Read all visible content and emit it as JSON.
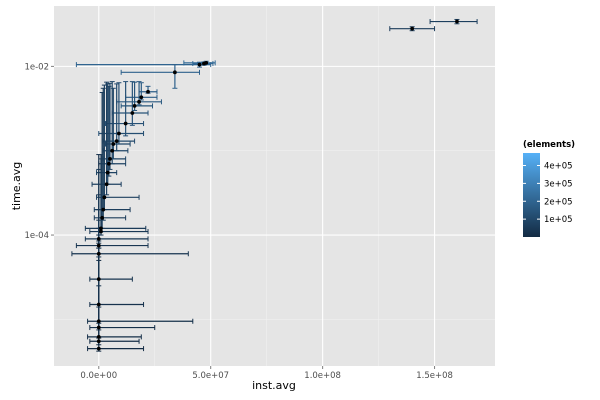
{
  "chart_data": {
    "type": "scatter",
    "title": "",
    "xlabel": "inst.avg",
    "ylabel": "time.avg",
    "x_scale": "linear",
    "y_scale": "log10",
    "xlim": [
      -20000000,
      177000000
    ],
    "ylim": [
      2.8e-06,
      0.052
    ],
    "x_ticks": [
      {
        "value": 0,
        "label": "0.0e+00"
      },
      {
        "value": 50000000,
        "label": "5.0e+07"
      },
      {
        "value": 100000000,
        "label": "1.0e+08"
      },
      {
        "value": 150000000,
        "label": "1.5e+08"
      }
    ],
    "y_ticks": [
      {
        "value": 0.0001,
        "label": "1e-04"
      },
      {
        "value": 0.01,
        "label": "1e-02"
      }
    ],
    "grid": true,
    "legend": {
      "title": "(elements)",
      "position": "right",
      "type": "colorbar",
      "range": [
        0,
        470000
      ],
      "color_low": "#132b43",
      "color_high": "#56b1f7",
      "breaks": [
        {
          "value": 100000,
          "label": "1e+05"
        },
        {
          "value": 200000,
          "label": "2e+05"
        },
        {
          "value": 300000,
          "label": "3e+05"
        },
        {
          "value": 400000,
          "label": "4e+05"
        }
      ]
    },
    "points": [
      {
        "x": 0,
        "y": 4.5e-06,
        "xmin": -5000000,
        "xmax": 20000000,
        "ymin": 4.2e-06,
        "ymax": 5e-05,
        "elements": 5000
      },
      {
        "x": 0,
        "y": 5.5e-06,
        "xmin": -4000000,
        "xmax": 18000000,
        "ymin": 5e-06,
        "ymax": 0.0009,
        "elements": 8000
      },
      {
        "x": 0,
        "y": 6.2e-06,
        "xmin": -5000000,
        "xmax": 19000000,
        "ymin": 6e-06,
        "ymax": 7e-05,
        "elements": 12000
      },
      {
        "x": 0,
        "y": 8e-06,
        "xmin": -4000000,
        "xmax": 25000000,
        "ymin": 7.5e-06,
        "ymax": 8e-05,
        "elements": 15000
      },
      {
        "x": 0,
        "y": 9.5e-06,
        "xmin": -5000000,
        "xmax": 42000000,
        "ymin": 9e-06,
        "ymax": 0.0001,
        "elements": 20000
      },
      {
        "x": 0,
        "y": 1.5e-05,
        "xmin": -4000000,
        "xmax": 20000000,
        "ymin": 1.4e-05,
        "ymax": 0.00012,
        "elements": 25000
      },
      {
        "x": 0,
        "y": 3e-05,
        "xmin": -4000000,
        "xmax": 15000000,
        "ymin": 2.5e-05,
        "ymax": 0.00015,
        "elements": 30000
      },
      {
        "x": 0,
        "y": 6e-05,
        "xmin": -12000000,
        "xmax": 40000000,
        "ymin": 5.5e-05,
        "ymax": 0.0002,
        "elements": 35000
      },
      {
        "x": 0,
        "y": 7.5e-05,
        "xmin": -10000000,
        "xmax": 22000000,
        "ymin": 7e-05,
        "ymax": 0.0003,
        "elements": 40000
      },
      {
        "x": 0,
        "y": 9e-05,
        "xmin": -6000000,
        "xmax": 22000000,
        "ymin": 8.5e-05,
        "ymax": 0.0006,
        "elements": 45000
      },
      {
        "x": 1000000,
        "y": 0.00011,
        "xmin": -4000000,
        "xmax": 22000000,
        "ymin": 0.0001,
        "ymax": 0.0008,
        "elements": 50000
      },
      {
        "x": 1000000,
        "y": 0.00012,
        "xmin": -6000000,
        "xmax": 21000000,
        "ymin": 0.00011,
        "ymax": 0.0009,
        "elements": 55000
      },
      {
        "x": 1500000,
        "y": 0.00016,
        "xmin": -2000000,
        "xmax": 12000000,
        "ymin": 0.00012,
        "ymax": 0.0049,
        "elements": 60000
      },
      {
        "x": 2000000,
        "y": 0.0002,
        "xmin": -2000000,
        "xmax": 14000000,
        "ymin": 0.00015,
        "ymax": 0.0055,
        "elements": 65000
      },
      {
        "x": 2500000,
        "y": 0.00028,
        "xmin": -1000000,
        "xmax": 18000000,
        "ymin": 0.0002,
        "ymax": 0.006,
        "elements": 70000
      },
      {
        "x": 3500000,
        "y": 0.0004,
        "xmin": -3000000,
        "xmax": 10000000,
        "ymin": 0.0003,
        "ymax": 0.0065,
        "elements": 75000
      },
      {
        "x": 4000000,
        "y": 0.00055,
        "xmin": -1000000,
        "xmax": 8000000,
        "ymin": 0.0004,
        "ymax": 0.0062,
        "elements": 80000
      },
      {
        "x": 4500000,
        "y": 0.0007,
        "xmin": 0,
        "xmax": 12000000,
        "ymin": 0.0005,
        "ymax": 0.0058,
        "elements": 85000
      },
      {
        "x": 5000000,
        "y": 0.0008,
        "xmin": 2000000,
        "xmax": 12000000,
        "ymin": 0.0006,
        "ymax": 0.0063,
        "elements": 90000
      },
      {
        "x": 6000000,
        "y": 0.001,
        "xmin": 2000000,
        "xmax": 13000000,
        "ymin": 0.0007,
        "ymax": 0.0066,
        "elements": 95000
      },
      {
        "x": 6500000,
        "y": 0.0012,
        "xmin": 3000000,
        "xmax": 14000000,
        "ymin": 0.0008,
        "ymax": 0.0055,
        "elements": 100000
      },
      {
        "x": 8000000,
        "y": 0.0013,
        "xmin": 2000000,
        "xmax": 16000000,
        "ymin": 0.001,
        "ymax": 0.0062,
        "elements": 110000
      },
      {
        "x": 9000000,
        "y": 0.0016,
        "xmin": 0,
        "xmax": 20000000,
        "ymin": 0.0012,
        "ymax": 0.0064,
        "elements": 120000
      },
      {
        "x": 12000000,
        "y": 0.0021,
        "xmin": 3000000,
        "xmax": 20000000,
        "ymin": 0.0015,
        "ymax": 0.0066,
        "elements": 130000
      },
      {
        "x": 15000000,
        "y": 0.0028,
        "xmin": 6000000,
        "xmax": 22000000,
        "ymin": 0.002,
        "ymax": 0.0066,
        "elements": 140000
      },
      {
        "x": 16000000,
        "y": 0.0034,
        "xmin": 10000000,
        "xmax": 24000000,
        "ymin": 0.003,
        "ymax": 0.0065,
        "elements": 150000
      },
      {
        "x": 18000000,
        "y": 0.0038,
        "xmin": 8000000,
        "xmax": 28000000,
        "ymin": 0.0035,
        "ymax": 0.0066,
        "elements": 160000
      },
      {
        "x": 19000000,
        "y": 0.0043,
        "xmin": 12000000,
        "xmax": 26000000,
        "ymin": 0.004,
        "ymax": 0.0064,
        "elements": 170000
      },
      {
        "x": 22000000,
        "y": 0.005,
        "xmin": 18000000,
        "xmax": 26000000,
        "ymin": 0.0048,
        "ymax": 0.0058,
        "elements": 180000
      },
      {
        "x": 34000000,
        "y": 0.0085,
        "xmin": 10000000,
        "xmax": 45000000,
        "ymin": 0.0055,
        "ymax": 0.0105,
        "elements": 190000
      },
      {
        "x": 45000000,
        "y": 0.0105,
        "xmin": -10000000,
        "xmax": 50000000,
        "ymin": 0.0098,
        "ymax": 0.0112,
        "elements": 200000
      },
      {
        "x": 47000000,
        "y": 0.0108,
        "xmin": 42000000,
        "xmax": 51000000,
        "ymin": 0.0103,
        "ymax": 0.0113,
        "elements": 210000
      },
      {
        "x": 48000000,
        "y": 0.011,
        "xmin": 38000000,
        "xmax": 52000000,
        "ymin": 0.0106,
        "ymax": 0.0115,
        "elements": 220000
      },
      {
        "x": 140000000,
        "y": 0.028,
        "xmin": 130000000,
        "xmax": 150000000,
        "ymin": 0.0265,
        "ymax": 0.0295,
        "elements": 60000
      },
      {
        "x": 160000000,
        "y": 0.034,
        "xmin": 148000000,
        "xmax": 169000000,
        "ymin": 0.032,
        "ymax": 0.036,
        "elements": 70000
      }
    ]
  }
}
